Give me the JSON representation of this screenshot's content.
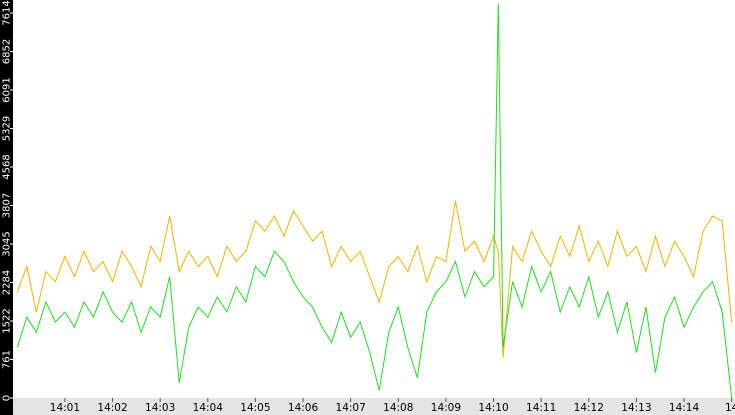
{
  "chart_data": {
    "type": "line",
    "x": [
      0,
      0.2,
      0.4,
      0.6,
      0.8,
      1,
      1.2,
      1.4,
      1.6,
      1.8,
      2,
      2.2,
      2.4,
      2.6,
      2.8,
      3,
      3.2,
      3.4,
      3.6,
      3.8,
      4,
      4.2,
      4.4,
      4.6,
      4.8,
      5,
      5.2,
      5.4,
      5.6,
      5.8,
      6,
      6.2,
      6.4,
      6.6,
      6.8,
      7,
      7.2,
      7.4,
      7.6,
      7.8,
      8,
      8.2,
      8.4,
      8.6,
      8.8,
      9,
      9.2,
      9.4,
      9.6,
      9.8,
      10,
      10.1,
      10.2,
      10.4,
      10.6,
      10.8,
      11,
      11.2,
      11.4,
      11.6,
      11.8,
      12,
      12.2,
      12.4,
      12.6,
      12.8,
      13,
      13.2,
      13.4,
      13.6,
      13.8,
      14,
      14.2,
      14.4,
      14.6,
      14.8,
      15
    ],
    "series": [
      {
        "color": "#f0b400",
        "values": [
          2100,
          2600,
          1700,
          2500,
          2300,
          2800,
          2400,
          2900,
          2500,
          2700,
          2300,
          2900,
          2600,
          2200,
          3000,
          2700,
          3600,
          2500,
          2900,
          2600,
          2800,
          2400,
          3000,
          2700,
          2900,
          3500,
          3300,
          3600,
          3200,
          3700,
          3400,
          3100,
          3300,
          2600,
          3000,
          2700,
          2900,
          2400,
          1900,
          2600,
          2800,
          2500,
          3000,
          2300,
          2800,
          2700,
          3900,
          2900,
          3100,
          2700,
          3200,
          2900,
          800,
          3000,
          2700,
          3300,
          2900,
          2600,
          3200,
          2800,
          3400,
          2700,
          3100,
          2600,
          3300,
          2800,
          3000,
          2500,
          3200,
          2600,
          3100,
          2800,
          2400,
          3300,
          3600,
          3500,
          1500
        ]
      },
      {
        "color": "#22dd22",
        "values": [
          1000,
          1600,
          1300,
          1900,
          1500,
          1700,
          1400,
          1900,
          1600,
          2100,
          1700,
          1500,
          1900,
          1300,
          1800,
          1600,
          2400,
          300,
          1400,
          1800,
          1600,
          2000,
          1700,
          2200,
          1900,
          2600,
          2400,
          2900,
          2700,
          2300,
          2000,
          1800,
          1400,
          1100,
          1700,
          1200,
          1500,
          900,
          150,
          1300,
          1800,
          1000,
          400,
          1700,
          2100,
          2300,
          2700,
          2000,
          2500,
          2200,
          2400,
          7800,
          1000,
          2300,
          1800,
          2600,
          2100,
          2500,
          1700,
          2200,
          1800,
          2400,
          1600,
          2100,
          1300,
          1900,
          900,
          1800,
          500,
          1600,
          2000,
          1400,
          1800,
          2100,
          2300,
          1700,
          0
        ]
      }
    ],
    "xlim": [
      -0.09,
      15.07
    ],
    "xticks": [
      {
        "value": 1,
        "label": "14:01"
      },
      {
        "value": 2,
        "label": "14:02"
      },
      {
        "value": 3,
        "label": "14:03"
      },
      {
        "value": 4,
        "label": "14:04"
      },
      {
        "value": 5,
        "label": "14:05"
      },
      {
        "value": 6,
        "label": "14:06"
      },
      {
        "value": 7,
        "label": "14:07"
      },
      {
        "value": 8,
        "label": "14:08"
      },
      {
        "value": 9,
        "label": "14:09"
      },
      {
        "value": 10,
        "label": "14:10"
      },
      {
        "value": 11,
        "label": "14:11"
      },
      {
        "value": 12,
        "label": "14:12"
      },
      {
        "value": 13,
        "label": "14:13"
      },
      {
        "value": 14,
        "label": "14:14"
      },
      {
        "value": 15,
        "label": "14"
      }
    ],
    "ylim": [
      0,
      7871
    ],
    "yticks": [
      0,
      761,
      1522,
      2284,
      3045,
      3807,
      4568,
      5329,
      6091,
      6852,
      7614
    ]
  }
}
